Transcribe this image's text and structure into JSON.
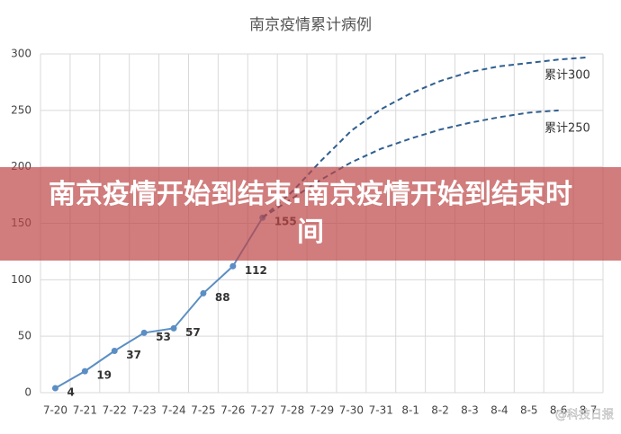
{
  "chart_data": {
    "type": "line",
    "title": "南京疫情累计病例",
    "categories": [
      "7-20",
      "7-21",
      "7-22",
      "7-23",
      "7-24",
      "7-25",
      "7-26",
      "7-27",
      "7-28",
      "7-29",
      "7-30",
      "7-31",
      "8-1",
      "8-2",
      "8-3",
      "8-4",
      "8-5",
      "8-6",
      "8-7"
    ],
    "series": [
      {
        "color": "#5b8ec4",
        "dashed": false,
        "data_labels": true,
        "values": [
          4,
          19,
          37,
          53,
          57,
          88,
          112,
          155,
          null,
          null,
          null,
          null,
          null,
          null,
          null,
          null,
          null,
          null,
          null
        ]
      },
      {
        "name": "累计300",
        "color": "#2f5f8f",
        "dashed": true,
        "data_labels": false,
        "values": [
          null,
          null,
          null,
          null,
          null,
          null,
          null,
          155,
          178,
          206,
          232,
          251,
          265,
          276,
          284,
          289,
          292,
          295,
          297
        ]
      },
      {
        "name": "累计250",
        "color": "#2f5f8f",
        "dashed": true,
        "data_labels": false,
        "values": [
          null,
          null,
          null,
          null,
          null,
          null,
          null,
          155,
          172,
          189,
          204,
          216,
          225,
          233,
          239,
          244,
          248,
          250,
          null
        ]
      }
    ],
    "ylim": [
      0,
      300
    ],
    "yticks": [
      0,
      50,
      100,
      150,
      200,
      250,
      300
    ],
    "grid": true
  },
  "overlay": {
    "text": "南京疫情开始到结束:南京疫情开始到结束时间"
  },
  "watermark": "@科技日报"
}
